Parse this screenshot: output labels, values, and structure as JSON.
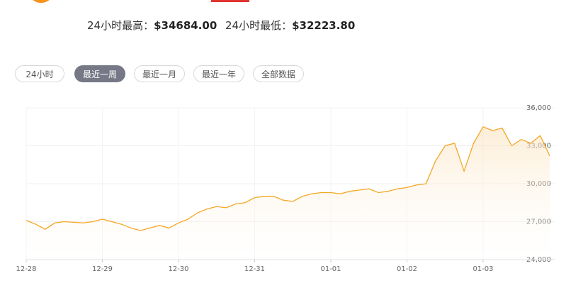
{
  "stats": [
    {
      "label": "24小时最高：",
      "value": "$34684.00"
    },
    {
      "label": "24小时最低：",
      "value": "$32223.80"
    }
  ],
  "tabs": [
    "24小时",
    "最近一周",
    "最近一月",
    "最近一年",
    "全部数据"
  ],
  "chart_data": {
    "type": "line",
    "color": "#f5a623",
    "grid": true,
    "categories": [
      "12-28",
      null,
      null,
      null,
      null,
      null,
      null,
      null,
      "12-29",
      null,
      null,
      null,
      null,
      null,
      null,
      null,
      "12-30",
      null,
      null,
      null,
      null,
      null,
      null,
      null,
      "12-31",
      null,
      null,
      null,
      null,
      null,
      null,
      null,
      "01-01",
      null,
      null,
      null,
      null,
      null,
      null,
      null,
      "01-02",
      null,
      null,
      null,
      null,
      null,
      null,
      null,
      "01-03",
      null,
      null,
      null,
      null,
      null,
      null,
      null
    ],
    "values": [
      27100,
      26800,
      26400,
      26900,
      27000,
      26950,
      26900,
      27000,
      27200,
      27000,
      26800,
      26500,
      26300,
      26500,
      26700,
      26500,
      26900,
      27200,
      27700,
      28000,
      28200,
      28100,
      28400,
      28500,
      28900,
      29000,
      29000,
      28700,
      28600,
      29000,
      29200,
      29300,
      29300,
      29200,
      29400,
      29500,
      29600,
      29300,
      29400,
      29600,
      29700,
      29900,
      30000,
      31800,
      33000,
      33200,
      31000,
      33200,
      34500,
      34200,
      34400,
      33000,
      33500,
      33200,
      33800,
      32200
    ],
    "ylim": [
      24000,
      36000
    ],
    "yticks": [
      {
        "value": 24000,
        "label": "24,000"
      },
      {
        "value": 27000,
        "label": "27,000"
      },
      {
        "value": 30000,
        "label": "30,000"
      },
      {
        "value": 33000,
        "label": "33,000"
      },
      {
        "value": 36000,
        "label": "36,000"
      }
    ]
  }
}
